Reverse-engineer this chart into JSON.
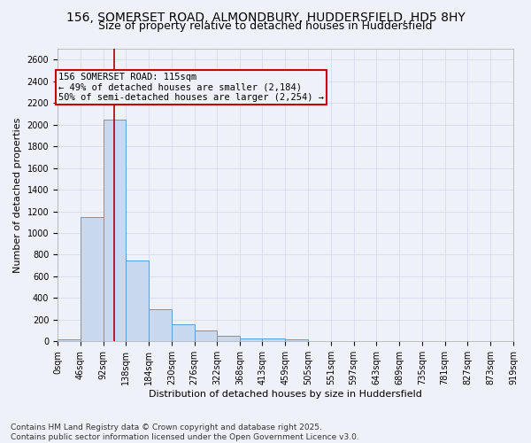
{
  "title": "156, SOMERSET ROAD, ALMONDBURY, HUDDERSFIELD, HD5 8HY",
  "subtitle": "Size of property relative to detached houses in Huddersfield",
  "xlabel": "Distribution of detached houses by size in Huddersfield",
  "ylabel": "Number of detached properties",
  "bin_edges": [
    0,
    46,
    92,
    138,
    184,
    230,
    276,
    322,
    368,
    413,
    459,
    505,
    551,
    597,
    643,
    689,
    735,
    781,
    827,
    873,
    919
  ],
  "bin_heights": [
    20,
    1150,
    2050,
    750,
    300,
    160,
    100,
    50,
    30,
    25,
    20,
    5,
    5,
    5,
    5,
    5,
    5,
    5,
    5,
    5
  ],
  "bar_color": "#c8d8ef",
  "bar_edge_color": "#6699cc",
  "grid_color": "#d0d8e8",
  "bg_color": "#eef2f8",
  "property_line_x": 115,
  "property_line_color": "#aa0000",
  "annotation_text": "156 SOMERSET ROAD: 115sqm\n← 49% of detached houses are smaller (2,184)\n50% of semi-detached houses are larger (2,254) →",
  "annotation_box_color": "#cc0000",
  "ylim": [
    0,
    2700
  ],
  "yticks": [
    0,
    200,
    400,
    600,
    800,
    1000,
    1200,
    1400,
    1600,
    1800,
    2000,
    2200,
    2400,
    2600
  ],
  "xtick_labels": [
    "0sqm",
    "46sqm",
    "92sqm",
    "138sqm",
    "184sqm",
    "230sqm",
    "276sqm",
    "322sqm",
    "368sqm",
    "413sqm",
    "459sqm",
    "505sqm",
    "551sqm",
    "597sqm",
    "643sqm",
    "689sqm",
    "735sqm",
    "781sqm",
    "827sqm",
    "873sqm",
    "919sqm"
  ],
  "footer_text": "Contains HM Land Registry data © Crown copyright and database right 2025.\nContains public sector information licensed under the Open Government Licence v3.0.",
  "title_fontsize": 10,
  "subtitle_fontsize": 9,
  "xlabel_fontsize": 8,
  "ylabel_fontsize": 8,
  "tick_fontsize": 7,
  "annotation_fontsize": 7.5,
  "footer_fontsize": 6.5
}
